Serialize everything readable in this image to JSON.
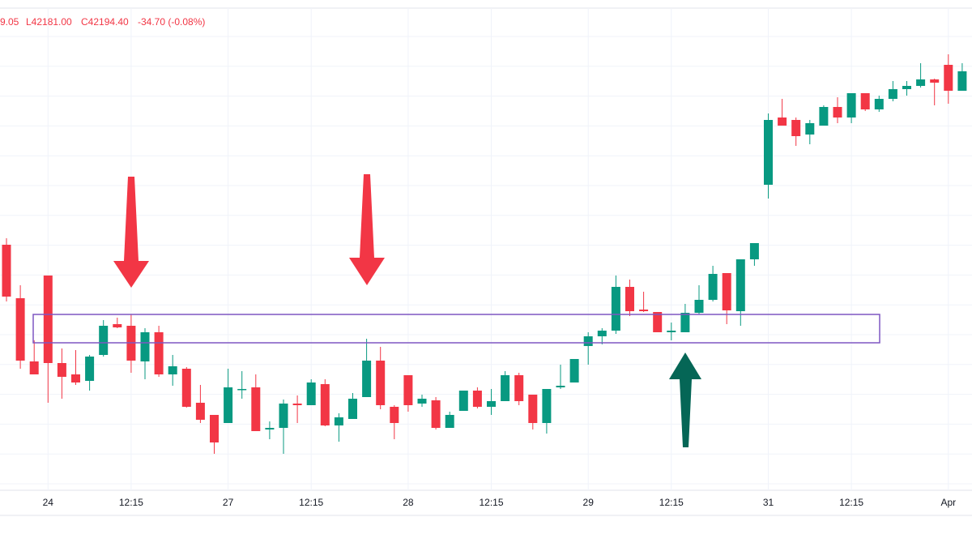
{
  "header": {
    "items": [
      "9.05",
      "L42181.00",
      "C42194.40",
      "-34.70 (-0.08%)"
    ]
  },
  "chart_data": {
    "type": "candlestick",
    "categories": [
      null,
      null,
      null,
      "24",
      null,
      null,
      null,
      null,
      null,
      "12:15",
      null,
      null,
      null,
      null,
      null,
      null,
      "27",
      null,
      null,
      null,
      null,
      null,
      "12:15",
      null,
      null,
      null,
      null,
      null,
      null,
      "28",
      null,
      null,
      null,
      null,
      null,
      "12:15",
      null,
      null,
      null,
      null,
      null,
      null,
      "29",
      null,
      null,
      null,
      null,
      null,
      "12:15",
      null,
      null,
      null,
      null,
      null,
      null,
      "31",
      null,
      null,
      null,
      null,
      null,
      "12:15",
      null,
      null,
      null,
      null,
      null,
      null,
      "Apr",
      null
    ],
    "open": [
      298,
      232,
      154,
      260,
      152,
      138,
      130,
      162,
      200,
      198,
      154,
      190,
      138,
      145,
      103,
      88,
      78,
      119,
      122,
      70,
      72,
      102,
      100,
      126,
      75,
      83,
      110,
      155,
      98,
      137,
      102,
      106,
      72,
      93,
      118,
      98,
      105,
      137,
      113,
      78,
      122,
      128,
      173,
      185,
      192,
      246,
      218,
      215,
      190,
      190,
      214,
      230,
      263,
      216,
      280,
      372,
      455,
      452,
      434,
      445,
      468,
      455,
      485,
      465,
      478,
      490,
      494,
      502,
      520,
      488
    ],
    "high": [
      306,
      248,
      180,
      260,
      170,
      168,
      162,
      205,
      208,
      212,
      195,
      198,
      162,
      147,
      125,
      88,
      145,
      142,
      138,
      80,
      107,
      112,
      132,
      132,
      90,
      115,
      182,
      172,
      100,
      137,
      113,
      110,
      92,
      118,
      122,
      120,
      142,
      140,
      113,
      120,
      150,
      157,
      190,
      195,
      260,
      255,
      240,
      215,
      202,
      225,
      248,
      272,
      263,
      280,
      300,
      460,
      478,
      455,
      452,
      470,
      480,
      485,
      485,
      482,
      500,
      500,
      522,
      503,
      533,
      522
    ],
    "low": [
      228,
      145,
      138,
      103,
      108,
      125,
      118,
      160,
      195,
      140,
      132,
      135,
      124,
      97,
      78,
      40,
      78,
      108,
      68,
      58,
      40,
      78,
      100,
      74,
      55,
      83,
      110,
      95,
      58,
      92,
      98,
      70,
      72,
      93,
      96,
      88,
      105,
      100,
      70,
      65,
      120,
      128,
      150,
      175,
      188,
      210,
      215,
      190,
      180,
      190,
      212,
      228,
      200,
      198,
      272,
      355,
      445,
      420,
      422,
      445,
      448,
      448,
      463,
      462,
      475,
      482,
      492,
      470,
      472,
      488
    ],
    "close": [
      234,
      155,
      138,
      152,
      135,
      128,
      160,
      198,
      196,
      155,
      190,
      138,
      148,
      98,
      82,
      54,
      122,
      120,
      68,
      72,
      102,
      100,
      128,
      75,
      85,
      108,
      155,
      100,
      78,
      100,
      108,
      72,
      88,
      118,
      98,
      105,
      137,
      105,
      78,
      120,
      124,
      157,
      185,
      192,
      246,
      216,
      216,
      190,
      192,
      214,
      230,
      262,
      217,
      280,
      300,
      452,
      445,
      432,
      448,
      468,
      455,
      485,
      465,
      478,
      490,
      494,
      502,
      498,
      488,
      512
    ],
    "up_color": "#089981",
    "down_color": "#f23645",
    "ylim": [
      0,
      600
    ],
    "grid": true
  }
}
